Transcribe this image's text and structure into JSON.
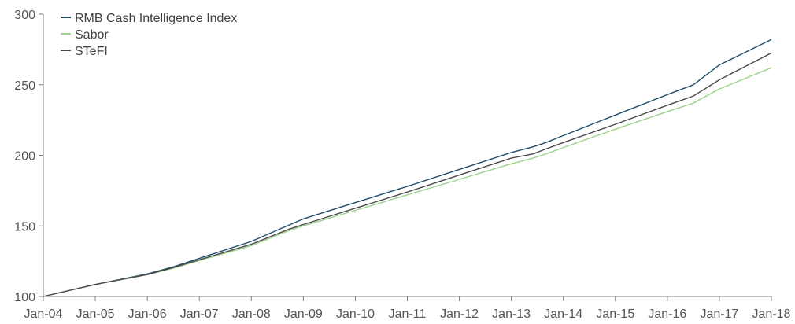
{
  "chart_data": {
    "type": "line",
    "title": "",
    "xlabel": "",
    "ylabel": "",
    "ylim": [
      100,
      300
    ],
    "y_ticks": [
      100,
      150,
      200,
      250,
      300
    ],
    "x_tick_labels": [
      "Jan-04",
      "Jan-05",
      "Jan-06",
      "Jan-07",
      "Jan-08",
      "Jan-09",
      "Jan-10",
      "Jan-11",
      "Jan-12",
      "Jan-13",
      "Jan-14",
      "Jan-15",
      "Jan-16",
      "Jan-17",
      "Jan-18"
    ],
    "grid": false,
    "legend_position": "top-left",
    "series": [
      {
        "name": "RMB Cash Intelligence Index",
        "color": "#1f4e6b",
        "points": [
          [
            "Jan-04",
            100
          ],
          [
            "Jan-05",
            108.5
          ],
          [
            "Jan-06",
            116
          ],
          [
            "Jan-06 (Jul)",
            121
          ],
          [
            "Jan-07",
            127
          ],
          [
            "Jan-08",
            139
          ],
          [
            "Jan-08 (Oct)",
            151
          ],
          [
            "Jan-09",
            155
          ],
          [
            "Jan-10",
            166.5
          ],
          [
            "Jan-11",
            178
          ],
          [
            "Jan-12",
            190
          ],
          [
            "Jan-13",
            202
          ],
          [
            "Jan-13 (Jun)",
            206
          ],
          [
            "Jan-13 (Sep)",
            209
          ],
          [
            "Jan-14",
            214
          ],
          [
            "Jan-15",
            228.5
          ],
          [
            "Jan-16",
            243
          ],
          [
            "Jan-16 (Jul)",
            250
          ],
          [
            "Jan-17",
            264
          ],
          [
            "Jan-18",
            282
          ]
        ]
      },
      {
        "name": "Sabor",
        "color": "#9fd28a",
        "points": [
          [
            "Jan-04",
            100
          ],
          [
            "Jan-05",
            108.5
          ],
          [
            "Jan-06",
            115.5
          ],
          [
            "Jan-06 (Jul)",
            120
          ],
          [
            "Jan-07",
            125.5
          ],
          [
            "Jan-08",
            136
          ],
          [
            "Jan-08 (Oct)",
            147
          ],
          [
            "Jan-09",
            150
          ],
          [
            "Jan-10",
            161
          ],
          [
            "Jan-11",
            172
          ],
          [
            "Jan-12",
            183
          ],
          [
            "Jan-13",
            194
          ],
          [
            "Jan-13 (Jun)",
            198
          ],
          [
            "Jan-13 (Sep)",
            201
          ],
          [
            "Jan-14",
            205.5
          ],
          [
            "Jan-15",
            218.5
          ],
          [
            "Jan-16",
            231
          ],
          [
            "Jan-16 (Jul)",
            237
          ],
          [
            "Jan-17",
            247
          ],
          [
            "Jan-18",
            262
          ]
        ]
      },
      {
        "name": "STeFI",
        "color": "#4a4a4a",
        "points": [
          [
            "Jan-04",
            100
          ],
          [
            "Jan-05",
            108.5
          ],
          [
            "Jan-06",
            115.5
          ],
          [
            "Jan-06 (Jul)",
            120.5
          ],
          [
            "Jan-07",
            126
          ],
          [
            "Jan-08",
            137
          ],
          [
            "Jan-08 (Oct)",
            148
          ],
          [
            "Jan-09",
            151
          ],
          [
            "Jan-10",
            162.5
          ],
          [
            "Jan-11",
            174
          ],
          [
            "Jan-12",
            186
          ],
          [
            "Jan-13",
            198
          ],
          [
            "Jan-13 (Jun)",
            201
          ],
          [
            "Jan-13 (Sep)",
            204.5
          ],
          [
            "Jan-14",
            209
          ],
          [
            "Jan-15",
            222
          ],
          [
            "Jan-16",
            235.5
          ],
          [
            "Jan-16 (Jul)",
            242
          ],
          [
            "Jan-17",
            253.5
          ],
          [
            "Jan-18",
            272.5
          ]
        ]
      }
    ]
  }
}
